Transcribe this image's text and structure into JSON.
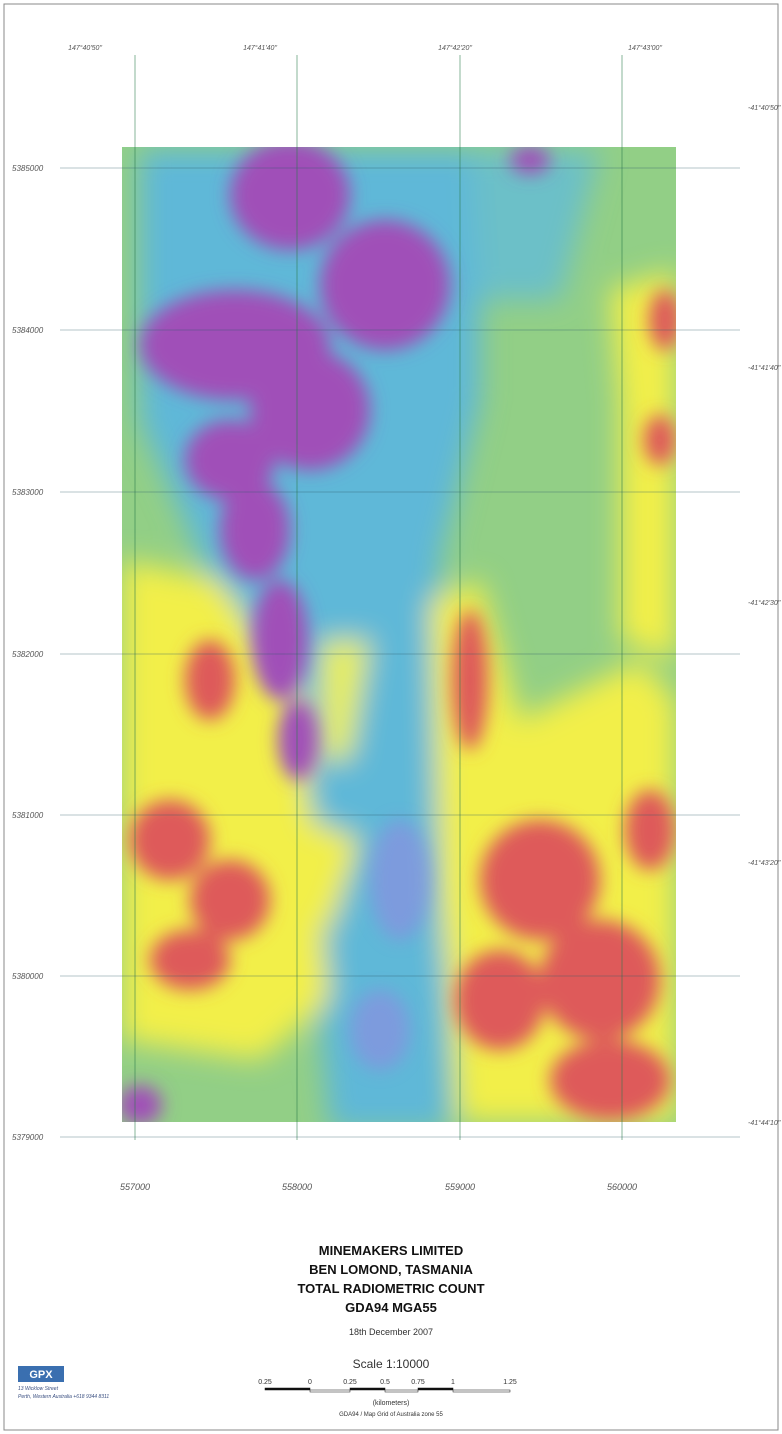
{
  "map": {
    "top_labels": [
      "147°40'50\"",
      "147°41'40\"",
      "147°42'20\"",
      "147°43'00\""
    ],
    "right_labels": [
      "-41°40'50\"",
      "-41°41'40\"",
      "-41°42'30\"",
      "-41°43'20\"",
      "-41°44'10\""
    ],
    "left_labels": [
      "5385000",
      "5384000",
      "5383000",
      "5382000",
      "5381000",
      "5380000",
      "5379000"
    ],
    "bottom_labels": [
      "557000",
      "558000",
      "559000",
      "560000"
    ]
  },
  "legend": {
    "title_lines": [
      "MINEMAKERS LIMITED",
      "BEN LOMOND, TASMANIA",
      "TOTAL RADIOMETRIC COUNT",
      "GDA94 MGA55"
    ],
    "date": "18th December 2007",
    "scale": "Scale 1:10000",
    "scale_ticks": [
      "0.25",
      "0",
      "0.25",
      "0.5",
      "0.75",
      "1",
      "1.25"
    ],
    "scale_unit": "(kilometers)",
    "projection": "GDA94 / Map Grid of Australia zone 55"
  },
  "logo": {
    "name": "GPX",
    "lines": [
      "13 Wicklow Street",
      "Perth, Western Australia   +618 9344 8311"
    ]
  }
}
